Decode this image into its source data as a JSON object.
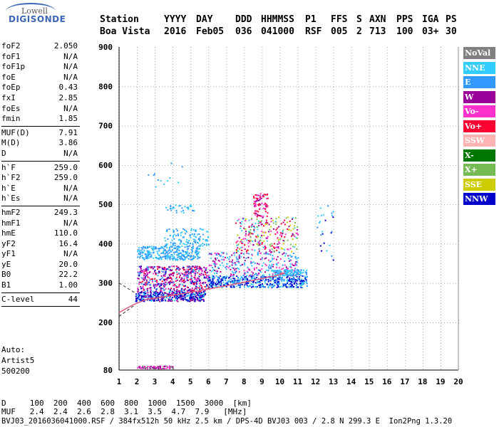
{
  "logo": {
    "line1": "Lowell",
    "line2": "DIGISONDE"
  },
  "header": {
    "labels": [
      "Station",
      "YYYY",
      "DAY",
      "DDD",
      "HHMMSS",
      "P1",
      "FFS",
      "S",
      "AXN",
      "PPS",
      "IGA",
      "PS"
    ],
    "values": [
      "Boa Vista",
      "2016",
      "Feb05",
      "036",
      "041000",
      "RSF",
      "005",
      "2",
      "713",
      "100",
      "03+",
      "30"
    ]
  },
  "params_groups": [
    [
      {
        "label": "foF2",
        "value": "2.050"
      },
      {
        "label": "foF1",
        "value": "N/A"
      },
      {
        "label": "foF1p",
        "value": "N/A"
      },
      {
        "label": "foE",
        "value": "N/A"
      },
      {
        "label": "foEp",
        "value": "0.43"
      },
      {
        "label": "fxI",
        "value": "2.85"
      },
      {
        "label": "foEs",
        "value": "N/A"
      },
      {
        "label": "fmin",
        "value": "1.85"
      }
    ],
    [
      {
        "label": "MUF(D)",
        "value": "7.91"
      },
      {
        "label": "M(D)",
        "value": "3.86"
      },
      {
        "label": "D",
        "value": "N/A"
      }
    ],
    [
      {
        "label": "h`F",
        "value": "259.0"
      },
      {
        "label": "h`F2",
        "value": "259.0"
      },
      {
        "label": "h`E",
        "value": "N/A"
      },
      {
        "label": "h`Es",
        "value": "N/A"
      }
    ],
    [
      {
        "label": "hmF2",
        "value": "249.3"
      },
      {
        "label": "hmF1",
        "value": "N/A"
      },
      {
        "label": "hmE",
        "value": "110.0"
      },
      {
        "label": "yF2",
        "value": "16.4"
      },
      {
        "label": "yF1",
        "value": "N/A"
      },
      {
        "label": "yE",
        "value": "20.0"
      },
      {
        "label": "B0",
        "value": "22.2"
      },
      {
        "label": "B1",
        "value": "1.00"
      }
    ],
    [
      {
        "label": "C-level",
        "value": "44"
      }
    ]
  ],
  "auto_info": [
    "Auto:",
    "Artist5",
    "500200"
  ],
  "axes": {
    "y_ticks": [
      "900",
      "800",
      "700",
      "600",
      "500",
      "400",
      "300",
      "200",
      "80"
    ],
    "x_ticks": [
      "1",
      "2",
      "3",
      "4",
      "5",
      "6",
      "7",
      "8",
      "9",
      "10",
      "11",
      "12",
      "13",
      "14",
      "15",
      "16",
      "17",
      "18",
      "19",
      "20"
    ]
  },
  "legend": [
    {
      "label": "NoVal",
      "color": "#808080"
    },
    {
      "label": "NNE",
      "color": "#33ccff"
    },
    {
      "label": "E",
      "color": "#3399ff"
    },
    {
      "label": "W",
      "color": "#990099"
    },
    {
      "label": "Vo-",
      "color": "#ff33cc"
    },
    {
      "label": "Vo+",
      "color": "#ff0033"
    },
    {
      "label": "SSW",
      "color": "#ffb3b3"
    },
    {
      "label": "X-",
      "color": "#007700"
    },
    {
      "label": "X+",
      "color": "#77bb55"
    },
    {
      "label": "SSE",
      "color": "#cccc00"
    },
    {
      "label": "NNW",
      "color": "#0000cc"
    }
  ],
  "footer": {
    "d_row": "D     100  200  400  600  800  1000  1500  3000  [km]",
    "muf_row": "MUF   2.4  2.4  2.6  2.8  3.1  3.5  4.7  7.9   [MHz]",
    "file_row": "BVJ03_2016036041000.RSF / 384fx512h 50 kHz 2.5 km / DPS-4D BVJ03 003 / 2.8 N 299.3 E  Ion2Png 1.3.20"
  }
}
